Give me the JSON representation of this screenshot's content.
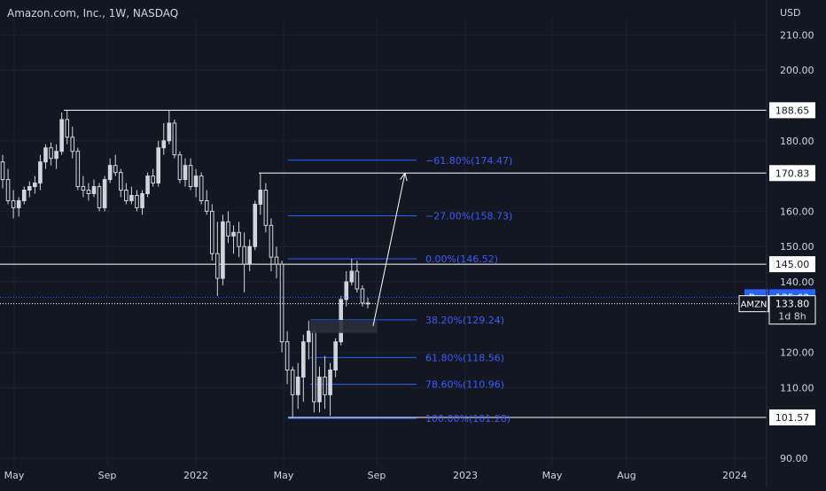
{
  "header": {
    "symbol_title": "Amazon.com, Inc., 1W, NASDAQ",
    "currency": "USD"
  },
  "colors": {
    "background": "#131722",
    "grid": "#1e222d",
    "text": "#d1d4dc",
    "candle": "#d1d4dc",
    "level_line": "#ffffff",
    "fib": "#2962ff",
    "fib_text": "#3d5afe",
    "pre_badge": "#2962ff",
    "zone": "#2a2e39"
  },
  "chart_data": {
    "type": "candlestick",
    "title": "Amazon.com, Inc., 1W, NASDAQ",
    "ylabel": "USD",
    "ylim": [
      88,
      215
    ],
    "y_ticks": [
      90,
      110,
      120,
      140,
      150,
      160,
      180,
      200,
      210
    ],
    "y_tick_labels": [
      "90.00",
      "110.00",
      "120.00",
      "140.00",
      "150.00",
      "160.00",
      "180.00",
      "200.00",
      "210.00"
    ],
    "x_ticks": [
      "May",
      "Sep",
      "2022",
      "May",
      "Sep",
      "2023",
      "May",
      "Aug",
      "2024"
    ],
    "candles_note": "weekly OHLC, May 2021 - Aug 2022",
    "candles": [
      [
        174.0,
        176.0,
        166.5,
        169.0
      ],
      [
        169.0,
        172.0,
        162.0,
        163.0
      ],
      [
        163.0,
        166.0,
        158.0,
        161.0
      ],
      [
        161.0,
        164.0,
        158.5,
        163.0
      ],
      [
        163.0,
        167.0,
        162.0,
        166.0
      ],
      [
        166.0,
        168.5,
        164.0,
        167.0
      ],
      [
        167.0,
        170.0,
        165.0,
        168.0
      ],
      [
        168.0,
        176.0,
        166.0,
        174.0
      ],
      [
        174.0,
        179.0,
        172.0,
        178.0
      ],
      [
        178.0,
        179.5,
        173.0,
        175.0
      ],
      [
        175.0,
        179.0,
        172.0,
        177.0
      ],
      [
        177.0,
        188.0,
        176.0,
        186.0
      ],
      [
        186.0,
        188.6,
        179.0,
        181.0
      ],
      [
        181.0,
        184.0,
        175.0,
        177.0
      ],
      [
        177.0,
        178.0,
        166.0,
        167.0
      ],
      [
        167.0,
        170.0,
        164.0,
        166.0
      ],
      [
        166.0,
        168.0,
        163.0,
        165.0
      ],
      [
        165.0,
        169.0,
        164.0,
        167.0
      ],
      [
        167.0,
        168.0,
        160.0,
        161.0
      ],
      [
        161.0,
        170.0,
        160.0,
        169.0
      ],
      [
        169.0,
        175.0,
        168.0,
        173.0
      ],
      [
        173.0,
        176.0,
        170.0,
        171.0
      ],
      [
        171.0,
        172.0,
        164.0,
        166.0
      ],
      [
        166.0,
        168.0,
        162.0,
        163.0
      ],
      [
        163.0,
        167.0,
        162.0,
        164.5
      ],
      [
        164.5,
        166.0,
        160.0,
        161.0
      ],
      [
        161.0,
        166.0,
        159.0,
        165.0
      ],
      [
        165.0,
        171.0,
        164.0,
        170.0
      ],
      [
        170.0,
        172.0,
        167.0,
        168.0
      ],
      [
        168.0,
        180.0,
        167.0,
        178.0
      ],
      [
        178.0,
        185.0,
        176.0,
        180.0
      ],
      [
        180.0,
        188.6,
        179.0,
        185.0
      ],
      [
        185.0,
        186.0,
        175.0,
        176.0
      ],
      [
        176.0,
        177.0,
        168.0,
        169.0
      ],
      [
        169.0,
        175.0,
        167.0,
        173.0
      ],
      [
        173.0,
        175.0,
        166.0,
        167.0
      ],
      [
        167.0,
        172.0,
        164.0,
        170.0
      ],
      [
        170.0,
        171.0,
        162.0,
        163.0
      ],
      [
        163.0,
        166.0,
        159.0,
        160.0
      ],
      [
        160.0,
        162.0,
        146.0,
        148.0
      ],
      [
        148.0,
        157.0,
        136.0,
        141.0
      ],
      [
        141.0,
        159.0,
        139.0,
        157.0
      ],
      [
        157.0,
        160.0,
        151.0,
        153.0
      ],
      [
        153.0,
        156.0,
        148.0,
        154.0
      ],
      [
        154.0,
        157.0,
        147.0,
        150.0
      ],
      [
        150.0,
        154.0,
        137.0,
        145.0
      ],
      [
        145.0,
        152.0,
        143.0,
        150.0
      ],
      [
        150.0,
        163.0,
        149.0,
        162.0
      ],
      [
        162.0,
        170.8,
        159.0,
        166.0
      ],
      [
        166.0,
        168.0,
        154.0,
        156.0
      ],
      [
        156.0,
        158.0,
        143.0,
        147.0
      ],
      [
        147.0,
        150.0,
        141.0,
        145.0
      ],
      [
        145.0,
        146.0,
        120.0,
        123.0
      ],
      [
        123.0,
        126.0,
        111.0,
        115.0
      ],
      [
        115.0,
        116.0,
        101.3,
        108.0
      ],
      [
        108.0,
        117.0,
        104.0,
        113.0
      ],
      [
        113.0,
        125.0,
        106.0,
        123.0
      ],
      [
        123.0,
        129.0,
        118.0,
        126.0
      ],
      [
        126.0,
        127.0,
        103.0,
        106.0
      ],
      [
        106.0,
        116.0,
        103.0,
        113.0
      ],
      [
        113.0,
        119.0,
        104.0,
        108.0
      ],
      [
        108.0,
        117.0,
        102.0,
        115.0
      ],
      [
        115.0,
        124.0,
        113.0,
        123.0
      ],
      [
        123.0,
        136.0,
        122.0,
        135.0
      ],
      [
        135.0,
        143.0,
        133.0,
        140.0
      ],
      [
        140.0,
        146.5,
        139.0,
        143.0
      ],
      [
        143.0,
        146.0,
        137.0,
        138.0
      ],
      [
        138.0,
        139.0,
        133.0,
        134.0
      ],
      [
        134.0,
        135.5,
        132.5,
        133.8
      ]
    ],
    "horizontal_levels": [
      {
        "value": 188.65,
        "label": "188.65"
      },
      {
        "value": 170.83,
        "label": "170.83"
      },
      {
        "value": 145.0,
        "label": "145.00"
      },
      {
        "value": 101.57,
        "label": "101.57"
      }
    ],
    "fib_levels": [
      {
        "value": 174.47,
        "label": "−61.80%(174.47)"
      },
      {
        "value": 158.73,
        "label": "−27.00%(158.73)"
      },
      {
        "value": 146.52,
        "label": "0.00%(146.52)"
      },
      {
        "value": 129.24,
        "label": "38.20%(129.24)"
      },
      {
        "value": 118.56,
        "label": "61.80%(118.56)"
      },
      {
        "value": 110.96,
        "label": "78.60%(110.96)"
      },
      {
        "value": 101.28,
        "label": "100.00%(101.28)"
      }
    ],
    "arrow": {
      "from": 127.5,
      "to": 170.8
    },
    "demand_zone": {
      "high": 129.2,
      "low": 125.5
    },
    "pre_market": {
      "badge": "Pre",
      "value": 135.63,
      "label": "135.63"
    },
    "last_price": {
      "symbol": "AMZN",
      "value": 133.8,
      "label": "133.80",
      "countdown": "1d 8h"
    }
  }
}
